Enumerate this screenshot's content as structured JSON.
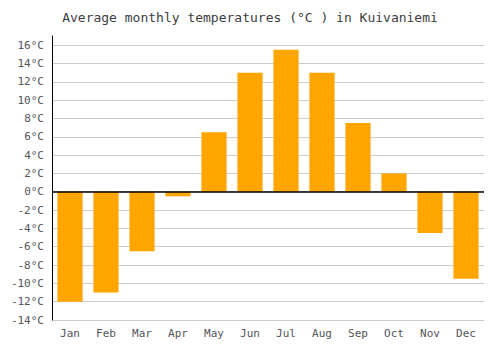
{
  "chart_data": {
    "type": "bar",
    "title": "Average monthly temperatures (°C ) in Kuivaniemi",
    "categories": [
      "Jan",
      "Feb",
      "Mar",
      "Apr",
      "May",
      "Jun",
      "Jul",
      "Aug",
      "Sep",
      "Oct",
      "Nov",
      "Dec"
    ],
    "values": [
      -12.0,
      -11.0,
      -6.5,
      -0.5,
      6.5,
      13.0,
      15.5,
      13.0,
      7.5,
      2.0,
      -4.5,
      -9.5
    ],
    "color": "#FFA500",
    "ylim": [
      -14,
      17
    ],
    "yticks": [
      {
        "value": -14,
        "label": "-14°C"
      },
      {
        "value": -12,
        "label": "-12°C"
      },
      {
        "value": -10,
        "label": "-10°C"
      },
      {
        "value": -8,
        "label": "-8°C"
      },
      {
        "value": -6,
        "label": "-6°C"
      },
      {
        "value": -4,
        "label": "-4°C"
      },
      {
        "value": -2,
        "label": "-2°C"
      },
      {
        "value": 0,
        "label": "0°C"
      },
      {
        "value": 2,
        "label": "2°C"
      },
      {
        "value": 4,
        "label": "4°C"
      },
      {
        "value": 6,
        "label": "6°C"
      },
      {
        "value": 8,
        "label": "8°C"
      },
      {
        "value": 10,
        "label": "10°C"
      },
      {
        "value": 12,
        "label": "12°C"
      },
      {
        "value": 14,
        "label": "14°C"
      },
      {
        "value": 16,
        "label": "16°C"
      }
    ],
    "grid": true
  }
}
